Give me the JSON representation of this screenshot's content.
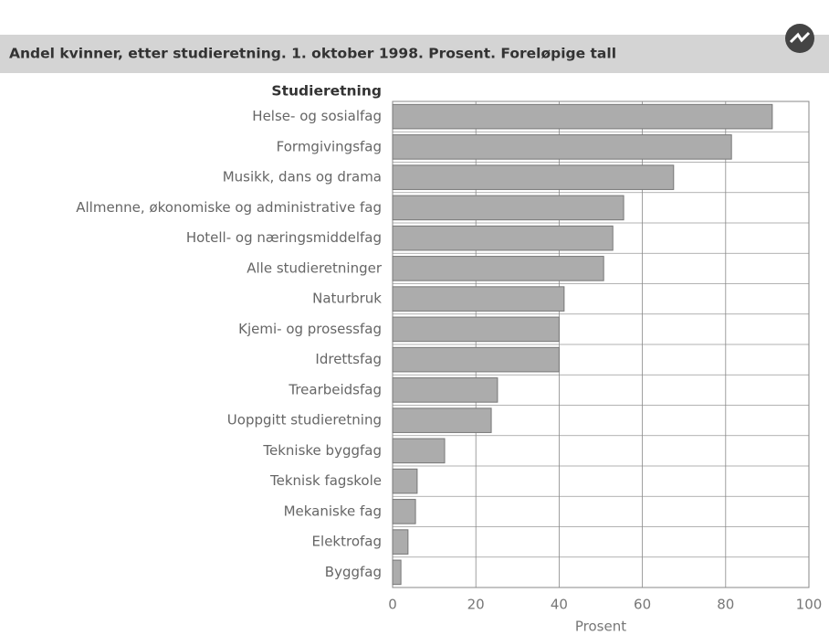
{
  "chart_data": {
    "type": "bar",
    "orientation": "horizontal",
    "title": "Andel kvinner, etter studieretning. 1. oktober 1998. Prosent. Foreløpige tall",
    "category_axis_label": "Studieretning",
    "xlabel": "Prosent",
    "categories": [
      "Helse- og sosialfag",
      "Formgivingsfag",
      "Musikk, dans og drama",
      "Allmenne, økonomiske og administrative fag",
      "Hotell- og næringsmiddelfag",
      "Alle studieretninger",
      "Naturbruk",
      "Kjemi- og prosessfag",
      "Idrettsfag",
      "Trearbeidsfag",
      "Uoppgitt studieretning",
      "Tekniske byggfag",
      "Teknisk fagskole",
      "Mekaniske fag",
      "Elektrofag",
      "Byggfag"
    ],
    "values": [
      91.2,
      81.4,
      67.5,
      55.5,
      52.9,
      50.7,
      41.2,
      40,
      40,
      25.2,
      23.7,
      12.5,
      5.9,
      5.5,
      3.7,
      2
    ],
    "color": "#acacac",
    "xlim": [
      0,
      100
    ],
    "xticks": [
      0,
      20,
      40,
      60,
      80,
      100
    ],
    "grid": true
  }
}
